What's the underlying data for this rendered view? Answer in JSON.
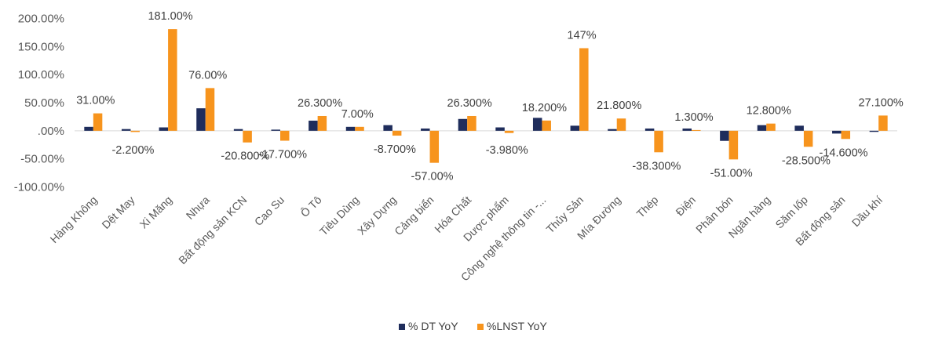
{
  "chart_data": {
    "type": "bar",
    "title": "",
    "xlabel": "",
    "ylabel": "",
    "ylim": [
      -100,
      200
    ],
    "y_ticks": [
      "200.00%",
      "150.00%",
      "100.00%",
      "50.00%",
      ".00%",
      "-50.00%",
      "-100.00%"
    ],
    "y_tick_values": [
      200,
      150,
      100,
      50,
      0,
      -50,
      -100
    ],
    "grid": false,
    "legend_position": "bottom",
    "categories": [
      "Hàng Không",
      "Dệt May",
      "Xi Măng",
      "Nhựa",
      "Bất động sản KCN",
      "Cao Su",
      "Ô Tô",
      "Tiêu Dùng",
      "Xây Dựng",
      "Cảng biển",
      "Hóa Chất",
      "Dược phẩm",
      "Công nghệ thông tin -...",
      "Thủy Sản",
      "Mía Đường",
      "Thép",
      "Điện",
      "Phân bón",
      "Ngân hàng",
      "Săm lốp",
      "Bất động sản",
      "Dầu khí"
    ],
    "series": [
      {
        "name": "% DT YoY",
        "color": "#1f2d5c",
        "values": [
          7,
          3,
          6,
          40,
          3,
          2,
          18,
          7,
          10,
          4,
          21,
          6,
          23,
          9,
          3,
          4,
          4,
          -18,
          10,
          9,
          -5,
          -2
        ]
      },
      {
        "name": "%LNST YoY",
        "color": "#f7941d",
        "values": [
          31.0,
          -2.2,
          181.0,
          76.0,
          -20.8,
          -17.7,
          26.3,
          7.0,
          -8.7,
          -57.0,
          26.3,
          -3.98,
          18.2,
          147,
          21.8,
          -38.3,
          1.3,
          -51.0,
          12.8,
          -28.5,
          -14.6,
          27.1
        ],
        "labels": [
          "31.00%",
          "-2.200%",
          "181.00%",
          "76.00%",
          "-20.800%",
          "-17.700%",
          "26.300%",
          "7.00%",
          "-8.700%",
          "-57.00%",
          "26.300%",
          "-3.980%",
          "18.200%",
          "147%",
          "21.800%",
          "-38.300%",
          "1.300%",
          "-51.00%",
          "12.800%",
          "-28.500%",
          "-14.600%",
          "27.100%"
        ]
      }
    ]
  }
}
